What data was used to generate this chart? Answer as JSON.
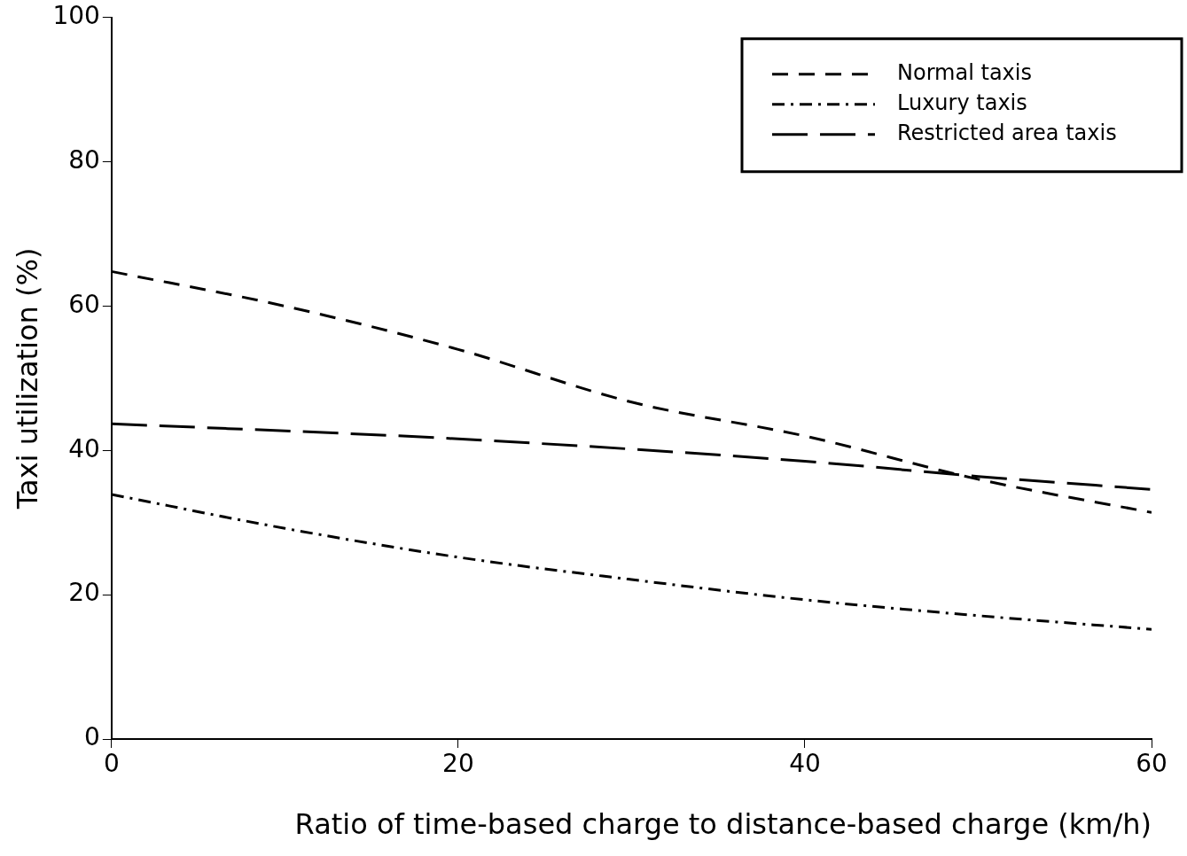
{
  "chart_data": {
    "type": "line",
    "xlabel": "Ratio of time-based charge to distance-based charge (km/h)",
    "ylabel": "Taxi utilization (%)",
    "xlim": [
      0,
      60
    ],
    "xticks": [
      0,
      20,
      40,
      60
    ],
    "ylim": [
      0,
      100
    ],
    "yticks": [
      0,
      20,
      40,
      60,
      80,
      100
    ],
    "grid": false,
    "legend": "top right",
    "marker": "none",
    "series": [
      {
        "name": "Normal taxis",
        "color": "#000000",
        "line_style": "dashed",
        "x": [
          0,
          10,
          20,
          30,
          40,
          50,
          60
        ],
        "values": [
          64.8,
          60,
          54,
          46.7,
          42,
          36,
          31.4
        ]
      },
      {
        "name": "Luxury taxis",
        "color": "#000000",
        "line_style": "dashdot",
        "x": [
          0,
          10,
          20,
          30,
          40,
          50,
          60
        ],
        "values": [
          33.9,
          29.2,
          25.2,
          22.1,
          19.3,
          17.1,
          15.2
        ]
      },
      {
        "name": "Restricted area taxis",
        "color": "#000000",
        "line_style": "longdash",
        "x": [
          0,
          20,
          40,
          50,
          60
        ],
        "values": [
          43.7,
          41.6,
          38.5,
          36.4,
          34.6
        ]
      }
    ]
  }
}
